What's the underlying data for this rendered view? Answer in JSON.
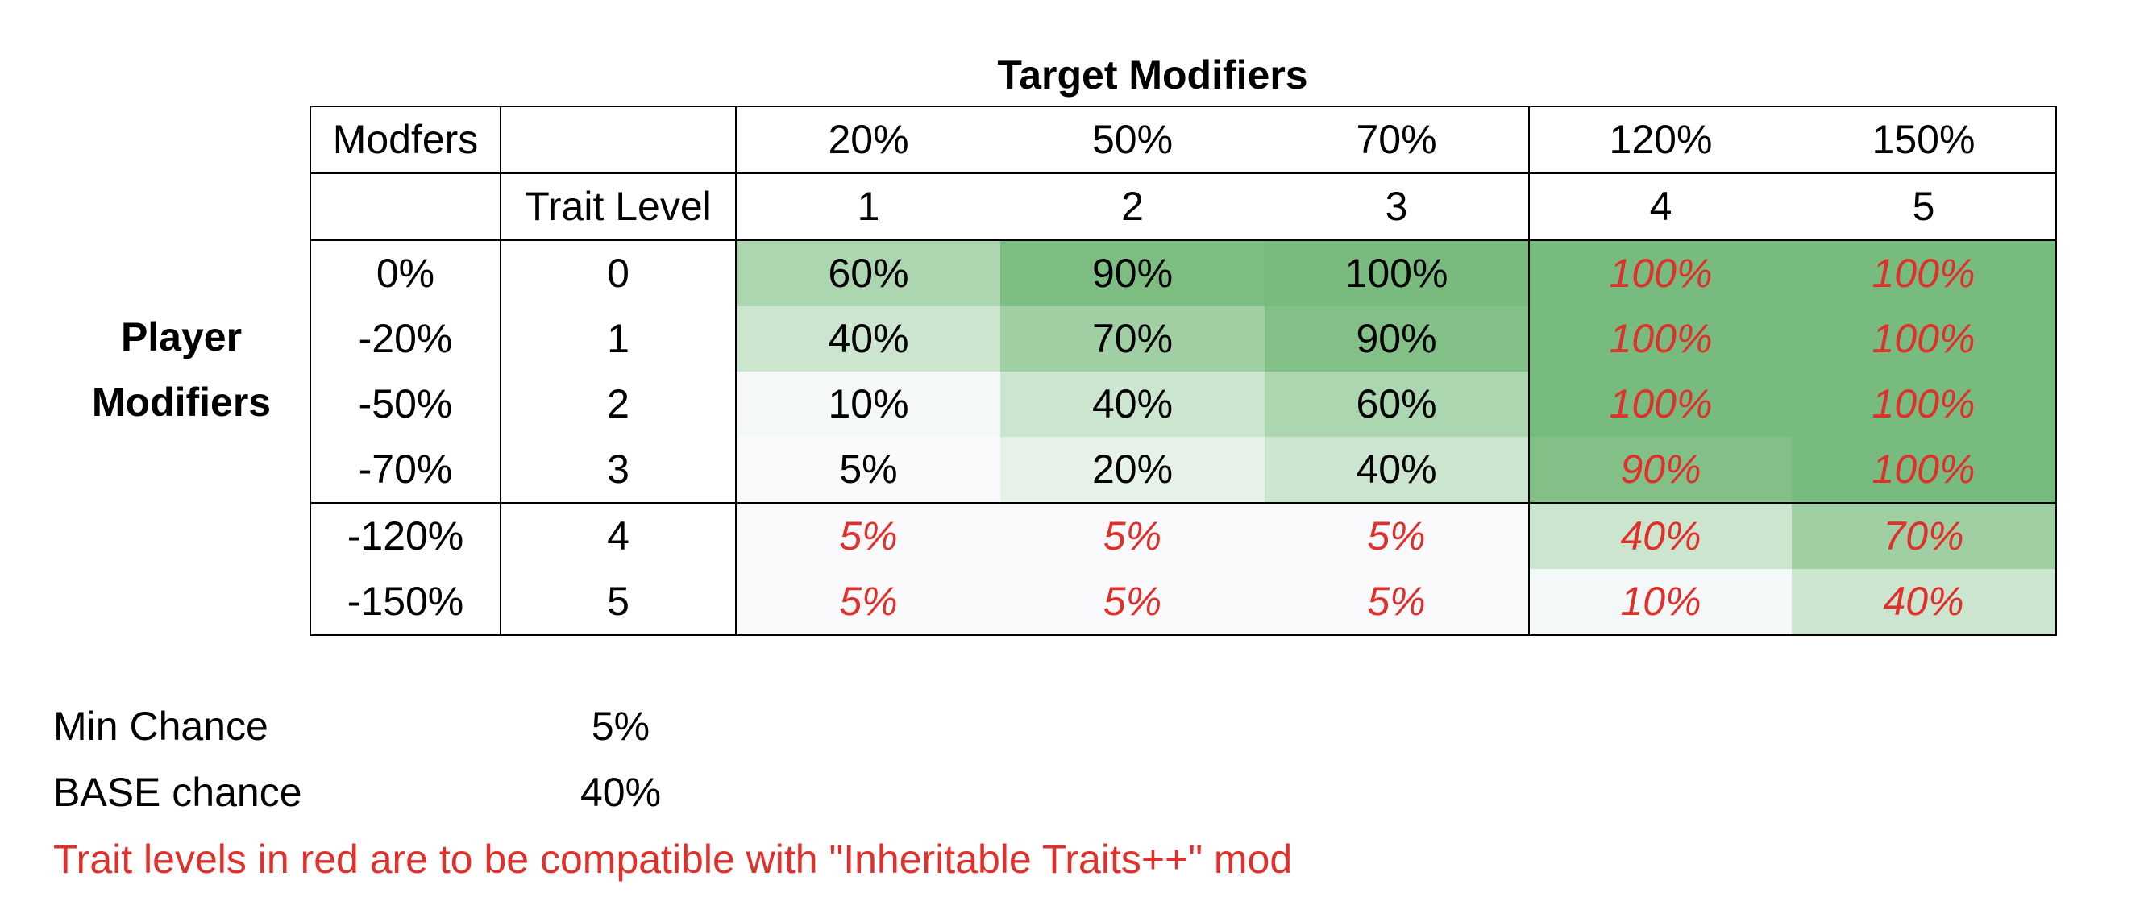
{
  "title": "Target Modifiers",
  "side_label_line1": "Player",
  "side_label_line2": "Modifiers",
  "header_row1": {
    "col1": "Modfers",
    "col2": "",
    "targets": [
      "20%",
      "50%",
      "70%",
      "120%",
      "150%"
    ]
  },
  "header_row2": {
    "col1": "",
    "col2": "Trait Level",
    "levels": [
      "1",
      "2",
      "3",
      "4",
      "5"
    ]
  },
  "rows": [
    {
      "modifier": "0%",
      "level": "0",
      "values": [
        "60%",
        "90%",
        "100%",
        "100%",
        "100%"
      ],
      "red": [
        false,
        false,
        false,
        true,
        true
      ],
      "bg": [
        "#acd6b0",
        "#7dbd82",
        "#79bb7f",
        "#78bb7e",
        "#78bb7e"
      ]
    },
    {
      "modifier": "-20%",
      "level": "1",
      "values": [
        "40%",
        "70%",
        "90%",
        "100%",
        "100%"
      ],
      "red": [
        false,
        false,
        false,
        true,
        true
      ],
      "bg": [
        "#cce5cf",
        "#9fcfa3",
        "#83c088",
        "#78bb7e",
        "#78bb7e"
      ]
    },
    {
      "modifier": "-50%",
      "level": "2",
      "values": [
        "10%",
        "40%",
        "60%",
        "100%",
        "100%"
      ],
      "red": [
        false,
        false,
        false,
        true,
        true
      ],
      "bg": [
        "#f4f8f8",
        "#cce5cf",
        "#acd6b0",
        "#78bb7e",
        "#78bb7e"
      ]
    },
    {
      "modifier": "-70%",
      "level": "3",
      "values": [
        "5%",
        "20%",
        "40%",
        "90%",
        "100%"
      ],
      "red": [
        false,
        false,
        false,
        true,
        true
      ],
      "bg": [
        "#fafafc",
        "#e6f2e8",
        "#cce5cf",
        "#83c088",
        "#78bb7e"
      ]
    },
    {
      "modifier": "-120%",
      "level": "4",
      "values": [
        "5%",
        "5%",
        "5%",
        "40%",
        "70%"
      ],
      "red": [
        true,
        true,
        true,
        true,
        true
      ],
      "bg": [
        "#fafafc",
        "#fafafc",
        "#fafafc",
        "#cce5cf",
        "#9fcfa3"
      ]
    },
    {
      "modifier": "-150%",
      "level": "5",
      "values": [
        "5%",
        "5%",
        "5%",
        "10%",
        "40%"
      ],
      "red": [
        true,
        true,
        true,
        true,
        true
      ],
      "bg": [
        "#fafafc",
        "#fafafc",
        "#fafafc",
        "#f4f8f8",
        "#cce5cf"
      ]
    }
  ],
  "notes": {
    "min_label": "Min Chance",
    "min_value": "5%",
    "base_label": "BASE chance",
    "base_value": "40%",
    "red_note": "Trait levels in red are to be compatible with \"Inheritable Traits++\" mod"
  },
  "colors": {
    "red_text": "#e0302b",
    "green_dark": "#78bb7e",
    "green_light": "#cce5cf"
  }
}
